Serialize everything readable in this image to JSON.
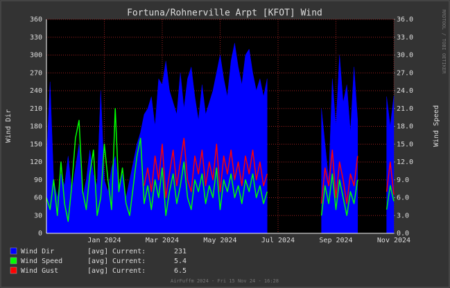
{
  "chart_data": {
    "type": "line",
    "title": "Fortuna/Rohnerville Arpt [KFOT] Wind",
    "ylabel": "Wind Dir",
    "y2label": "Wind Speed",
    "side_note": "RRDTOOL / TOBI OETIKER",
    "footer": "AirFuffm 2024 - Fri 15 Nov 24 - 16:28",
    "legend_stat": "[avg]",
    "legend_current": "Current:",
    "xlim": [
      "2023-11",
      "2024-11"
    ],
    "xticks": [
      {
        "value": "2024-01",
        "label": "Jan 2024"
      },
      {
        "value": "2024-03",
        "label": "Mar 2024"
      },
      {
        "value": "2024-05",
        "label": "May 2024"
      },
      {
        "value": "2024-07",
        "label": "Jul 2024"
      },
      {
        "value": "2024-09",
        "label": "Sep 2024"
      },
      {
        "value": "2024-11",
        "label": "Nov 2024"
      }
    ],
    "ylim": [
      0,
      360
    ],
    "yticks": [
      0,
      30,
      60,
      90,
      120,
      150,
      180,
      210,
      240,
      270,
      300,
      330,
      360
    ],
    "y2lim": [
      0,
      36
    ],
    "y2ticks": [
      {
        "value": 0,
        "label": "0.0"
      },
      {
        "value": 3,
        "label": "3.0"
      },
      {
        "value": 6,
        "label": "6.0"
      },
      {
        "value": 9,
        "label": "9.0"
      },
      {
        "value": 12,
        "label": "12.0"
      },
      {
        "value": 15,
        "label": "15.0"
      },
      {
        "value": 18,
        "label": "18.0"
      },
      {
        "value": 21,
        "label": "21.0"
      },
      {
        "value": 24,
        "label": "24.0"
      },
      {
        "value": 27,
        "label": "27.0"
      },
      {
        "value": 30,
        "label": "30.0"
      },
      {
        "value": 33,
        "label": "33.0"
      },
      {
        "value": 36,
        "label": "36.0"
      }
    ],
    "grid": true,
    "series": [
      {
        "name": "Wind Dir",
        "color": "#0000ff",
        "style": "area",
        "current": 231,
        "values": [
          120,
          255,
          90,
          60,
          100,
          80,
          130,
          70,
          110,
          150,
          60,
          90,
          140,
          100,
          80,
          240,
          90,
          70,
          110,
          130,
          80,
          100,
          60,
          90,
          120,
          150,
          170,
          200,
          210,
          230,
          180,
          260,
          250,
          290,
          240,
          220,
          200,
          270,
          210,
          260,
          280,
          230,
          190,
          250,
          200,
          220,
          240,
          270,
          300,
          260,
          230,
          290,
          320,
          280,
          250,
          300,
          310,
          270,
          240,
          260,
          230,
          260,
          null,
          null,
          null,
          null,
          null,
          null,
          null,
          null,
          null,
          null,
          null,
          null,
          null,
          null,
          210,
          150,
          90,
          260,
          180,
          300,
          220,
          250,
          170,
          280,
          190,
          null,
          null,
          null,
          null,
          null,
          null,
          null,
          230,
          180,
          231
        ]
      },
      {
        "name": "Wind Gust",
        "color": "#ff0000",
        "axis": "y2",
        "current": 6.5,
        "values": [
          null,
          null,
          null,
          null,
          null,
          null,
          null,
          null,
          null,
          null,
          null,
          null,
          null,
          null,
          null,
          null,
          null,
          null,
          null,
          null,
          null,
          null,
          null,
          null,
          null,
          null,
          null,
          8,
          11,
          7,
          13,
          9,
          15,
          6,
          10,
          14,
          8,
          12,
          16,
          9,
          7,
          13,
          10,
          14,
          8,
          12,
          9,
          15,
          7,
          13,
          10,
          14,
          9,
          12,
          8,
          13,
          10,
          14,
          9,
          12,
          8,
          10,
          null,
          null,
          null,
          null,
          null,
          null,
          null,
          null,
          null,
          null,
          null,
          null,
          null,
          null,
          5,
          11,
          8,
          14,
          6,
          12,
          9,
          5,
          10,
          8,
          13,
          null,
          null,
          null,
          null,
          null,
          null,
          null,
          7,
          12,
          6.5
        ]
      },
      {
        "name": "Wind Speed",
        "color": "#00ff00",
        "axis": "y2",
        "current": 5.4,
        "values": [
          6,
          4,
          9,
          3,
          12,
          5,
          2,
          8,
          16,
          19,
          7,
          4,
          10,
          14,
          3,
          6,
          15,
          9,
          4,
          21,
          7,
          11,
          5,
          3,
          8,
          13,
          16,
          5,
          8,
          4,
          9,
          6,
          11,
          3,
          7,
          10,
          5,
          8,
          12,
          6,
          4,
          9,
          7,
          10,
          5,
          8,
          6,
          11,
          4,
          9,
          7,
          10,
          6,
          8,
          5,
          9,
          7,
          10,
          6,
          8,
          5,
          7,
          null,
          null,
          null,
          null,
          null,
          null,
          null,
          null,
          null,
          null,
          null,
          null,
          null,
          null,
          3,
          8,
          5,
          10,
          4,
          9,
          6,
          3,
          7,
          5,
          9,
          null,
          null,
          null,
          null,
          null,
          null,
          null,
          4,
          8,
          5.4
        ]
      }
    ],
    "legend_order": [
      0,
      2,
      1
    ]
  }
}
